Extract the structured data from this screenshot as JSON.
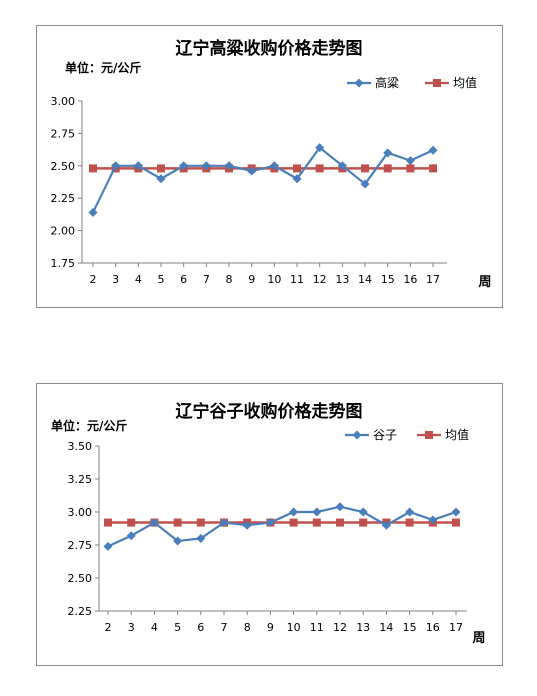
{
  "chart_data": [
    {
      "type": "line",
      "title": "辽宁高粱收购价格走势图",
      "unit_label": "单位：元/公斤",
      "xlabel": "周",
      "x": [
        2,
        3,
        4,
        5,
        6,
        7,
        8,
        9,
        10,
        11,
        12,
        13,
        14,
        15,
        16,
        17
      ],
      "ylim": [
        1.75,
        3.0
      ],
      "yticks": [
        "3.00",
        "2.75",
        "2.50",
        "2.25",
        "2.00",
        "1.75"
      ],
      "ytick_values": [
        3.0,
        2.75,
        2.5,
        2.25,
        2.0,
        1.75
      ],
      "legend_position": "top-right",
      "grid": false,
      "series": [
        {
          "name": "高粱",
          "color": "#4a7ebb",
          "marker": "diamond",
          "values": [
            2.14,
            2.5,
            2.5,
            2.4,
            2.5,
            2.5,
            2.5,
            2.46,
            2.5,
            2.4,
            2.64,
            2.5,
            2.36,
            2.6,
            2.54,
            2.62
          ]
        },
        {
          "name": "均值",
          "color": "#c0504d",
          "marker": "square",
          "values": [
            2.48,
            2.48,
            2.48,
            2.48,
            2.48,
            2.48,
            2.48,
            2.48,
            2.48,
            2.48,
            2.48,
            2.48,
            2.48,
            2.48,
            2.48,
            2.48
          ]
        }
      ]
    },
    {
      "type": "line",
      "title": "辽宁谷子收购价格走势图",
      "unit_label": "单位：元/公斤",
      "xlabel": "周",
      "x": [
        2,
        3,
        4,
        5,
        6,
        7,
        8,
        9,
        10,
        11,
        12,
        13,
        14,
        15,
        16,
        17
      ],
      "ylim": [
        2.25,
        3.5
      ],
      "yticks": [
        "3.50",
        "3.25",
        "3.00",
        "2.75",
        "2.50",
        "2.25"
      ],
      "ytick_values": [
        3.5,
        3.25,
        3.0,
        2.75,
        2.5,
        2.25
      ],
      "legend_position": "top-right",
      "grid": false,
      "series": [
        {
          "name": "谷子",
          "color": "#4a7ebb",
          "marker": "diamond",
          "values": [
            2.74,
            2.82,
            2.92,
            2.78,
            2.8,
            2.92,
            2.9,
            2.92,
            3.0,
            3.0,
            3.04,
            3.0,
            2.9,
            3.0,
            2.94,
            3.0
          ]
        },
        {
          "name": "均值",
          "color": "#c0504d",
          "marker": "square",
          "values": [
            2.92,
            2.92,
            2.92,
            2.92,
            2.92,
            2.92,
            2.92,
            2.92,
            2.92,
            2.92,
            2.92,
            2.92,
            2.92,
            2.92,
            2.92,
            2.92
          ]
        }
      ]
    }
  ]
}
